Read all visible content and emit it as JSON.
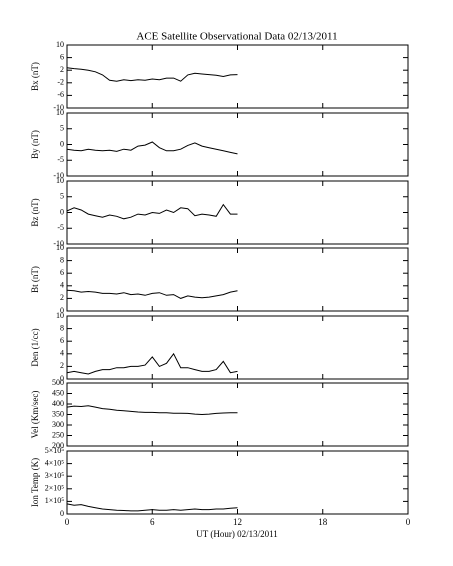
{
  "chart_data": [
    {
      "type": "line",
      "title": "ACE Satellite Observational Data   02/13/2011",
      "y_label": "Bx (nT)",
      "color": "#000000",
      "x": [
        0,
        0.5,
        1,
        1.5,
        2,
        2.5,
        3,
        3.5,
        4,
        4.5,
        5,
        5.5,
        6,
        6.5,
        7,
        7.5,
        8,
        8.5,
        9,
        9.5,
        10,
        10.5,
        11,
        11.5,
        12
      ],
      "values": [
        2.8,
        2.5,
        2.3,
        2.0,
        1.5,
        0.5,
        -1.2,
        -1.5,
        -1.0,
        -1.3,
        -1.0,
        -1.2,
        -0.8,
        -1.0,
        -0.5,
        -0.5,
        -1.5,
        0.5,
        1.0,
        0.8,
        0.6,
        0.4,
        0.0,
        0.5,
        0.6
      ],
      "xlim": [
        0,
        24
      ],
      "ylim": [
        -10,
        10
      ],
      "yticks": [
        -10,
        -6,
        -2,
        2,
        6,
        10
      ]
    },
    {
      "type": "line",
      "y_label": "By (nT)",
      "color": "#000000",
      "x": [
        0,
        0.5,
        1,
        1.5,
        2,
        2.5,
        3,
        3.5,
        4,
        4.5,
        5,
        5.5,
        6,
        6.5,
        7,
        7.5,
        8,
        8.5,
        9,
        9.5,
        10,
        10.5,
        11,
        11.5,
        12
      ],
      "values": [
        -1.5,
        -1.8,
        -2.0,
        -1.5,
        -1.8,
        -2.0,
        -1.8,
        -2.2,
        -1.5,
        -1.8,
        -0.5,
        -0.2,
        0.8,
        -1.0,
        -2.0,
        -2.0,
        -1.5,
        -0.3,
        0.5,
        -0.5,
        -1.0,
        -1.5,
        -2.0,
        -2.5,
        -3.0
      ],
      "xlim": [
        0,
        24
      ],
      "ylim": [
        -10,
        10
      ],
      "yticks": [
        -10,
        -5,
        0,
        5,
        10
      ]
    },
    {
      "type": "line",
      "y_label": "Bz (nT)",
      "color": "#000000",
      "x": [
        0,
        0.5,
        1,
        1.5,
        2,
        2.5,
        3,
        3.5,
        4,
        4.5,
        5,
        5.5,
        6,
        6.5,
        7,
        7.5,
        8,
        8.5,
        9,
        9.5,
        10,
        10.5,
        11,
        11.5,
        12
      ],
      "values": [
        0.5,
        1.5,
        0.8,
        -0.5,
        -1.0,
        -1.5,
        -0.8,
        -1.2,
        -2.0,
        -1.5,
        -0.5,
        -0.8,
        0,
        -0.3,
        0.8,
        0,
        1.5,
        1.2,
        -1,
        -0.5,
        -0.8,
        -1.2,
        2.5,
        -0.5,
        -0.5
      ],
      "xlim": [
        0,
        24
      ],
      "ylim": [
        -10,
        10
      ],
      "yticks": [
        -10,
        -5,
        0,
        5,
        10
      ]
    },
    {
      "type": "line",
      "y_label": "Bt (nT)",
      "color": "#000000",
      "x": [
        0,
        0.5,
        1,
        1.5,
        2,
        2.5,
        3,
        3.5,
        4,
        4.5,
        5,
        5.5,
        6,
        6.5,
        7,
        7.5,
        8,
        8.5,
        9,
        9.5,
        10,
        10.5,
        11,
        11.5,
        12
      ],
      "values": [
        3.3,
        3.2,
        3.0,
        3.1,
        3.0,
        2.8,
        2.8,
        2.7,
        2.9,
        2.6,
        2.7,
        2.5,
        2.8,
        2.9,
        2.5,
        2.6,
        2.0,
        2.4,
        2.2,
        2.1,
        2.2,
        2.4,
        2.6,
        3.0,
        3.2
      ],
      "xlim": [
        0,
        24
      ],
      "ylim": [
        0,
        10
      ],
      "yticks": [
        0,
        2,
        4,
        6,
        8,
        10
      ]
    },
    {
      "type": "line",
      "y_label": "Den (1/cc)",
      "color": "#000000",
      "x": [
        0,
        0.5,
        1,
        1.5,
        2,
        2.5,
        3,
        3.5,
        4,
        4.5,
        5,
        5.5,
        6,
        6.5,
        7,
        7.5,
        8,
        8.5,
        9,
        9.5,
        10,
        10.5,
        11,
        11.5,
        12
      ],
      "values": [
        1.0,
        1.2,
        1.0,
        0.8,
        1.2,
        1.5,
        1.5,
        1.8,
        1.8,
        2.0,
        2.0,
        2.2,
        3.5,
        2.0,
        2.5,
        4.0,
        1.8,
        1.8,
        1.5,
        1.2,
        1.2,
        1.5,
        2.8,
        1.0,
        1.2
      ],
      "xlim": [
        0,
        24
      ],
      "ylim": [
        0,
        10
      ],
      "yticks": [
        0,
        2,
        4,
        6,
        8,
        10
      ]
    },
    {
      "type": "line",
      "y_label": "Vel (Km/sec)",
      "color": "#000000",
      "x": [
        0,
        0.5,
        1,
        1.5,
        2,
        2.5,
        3,
        3.5,
        4,
        4.5,
        5,
        5.5,
        6,
        6.5,
        7,
        7.5,
        8,
        8.5,
        9,
        9.5,
        10,
        10.5,
        11,
        11.5,
        12
      ],
      "values": [
        385,
        390,
        388,
        392,
        385,
        378,
        375,
        370,
        368,
        365,
        362,
        360,
        360,
        358,
        358,
        356,
        356,
        355,
        352,
        350,
        352,
        355,
        357,
        358,
        358
      ],
      "xlim": [
        0,
        24
      ],
      "ylim": [
        200,
        500
      ],
      "yticks": [
        200,
        250,
        300,
        350,
        400,
        450,
        500
      ]
    },
    {
      "type": "line",
      "y_label": "Ion Temp (K)",
      "x_label": "UT (Hour)  02/13/2011",
      "color": "#000000",
      "x": [
        0,
        0.5,
        1,
        1.5,
        2,
        2.5,
        3,
        3.5,
        4,
        4.5,
        5,
        5.5,
        6,
        6.5,
        7,
        7.5,
        8,
        8.5,
        9,
        9.5,
        10,
        10.5,
        11,
        11.5,
        12
      ],
      "values": [
        80000,
        70000,
        75000,
        60000,
        50000,
        40000,
        35000,
        30000,
        28000,
        25000,
        25000,
        30000,
        35000,
        30000,
        30000,
        35000,
        30000,
        35000,
        40000,
        35000,
        35000,
        40000,
        40000,
        45000,
        50000
      ],
      "xlim": [
        0,
        24
      ],
      "xticks": [
        0,
        6,
        12,
        18,
        {
          "value": 24,
          "label": "0"
        }
      ],
      "ylim": [
        0,
        500000
      ],
      "yticks": [
        0,
        {
          "value": 100000,
          "label": "1×10⁵"
        },
        {
          "value": 200000,
          "label": "2×10⁵"
        },
        {
          "value": 300000,
          "label": "3×10⁵"
        },
        {
          "value": 400000,
          "label": "4×10⁵"
        },
        {
          "value": 500000,
          "label": "5×10⁵"
        }
      ]
    }
  ]
}
